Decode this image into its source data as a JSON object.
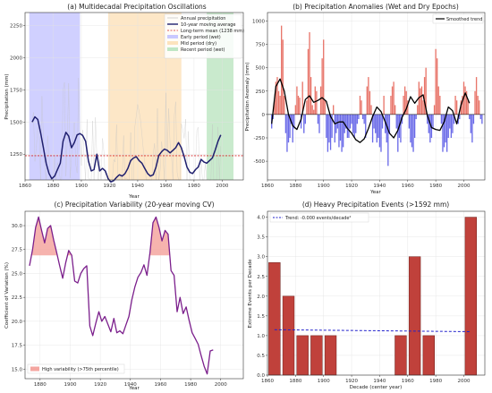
{
  "chart_data": [
    {
      "type": "line",
      "title": "(a) Multidecadal Precipitation Oscillations",
      "xlabel": "Year",
      "ylabel": "Precipitation (mm)",
      "xlim": [
        1860,
        2015
      ],
      "ylim": [
        1050,
        2350
      ],
      "xticks": [
        1860,
        1880,
        1900,
        1920,
        1940,
        1960,
        1980,
        2000
      ],
      "yticks": [
        1000,
        1250,
        1500,
        1750,
        2000,
        2250
      ],
      "legend_position": "top-right",
      "grid": true,
      "spans": [
        {
          "name": "Early period (wet)",
          "x0": 1863,
          "x1": 1899,
          "color": "#c8c8ff"
        },
        {
          "name": "Mid period (dry)",
          "x0": 1919,
          "x1": 1971,
          "color": "#fde3bd"
        },
        {
          "name": "Recent period (wet)",
          "x0": 1989,
          "x1": 2008,
          "color": "#bfe6c4"
        }
      ],
      "series": [
        {
          "name": "Annual precipitation",
          "color": "#c0c0c0"
        },
        {
          "name": "10-year moving average",
          "color": "#1f1f6e",
          "x": [
            1865,
            1867,
            1869,
            1871,
            1873,
            1875,
            1877,
            1879,
            1881,
            1883,
            1885,
            1887,
            1889,
            1891,
            1893,
            1895,
            1897,
            1899,
            1901,
            1903,
            1905,
            1907,
            1909,
            1911,
            1913,
            1915,
            1917,
            1919,
            1921,
            1923,
            1925,
            1927,
            1929,
            1931,
            1933,
            1935,
            1937,
            1939,
            1941,
            1943,
            1945,
            1947,
            1949,
            1951,
            1953,
            1955,
            1957,
            1959,
            1961,
            1963,
            1965,
            1967,
            1969,
            1971,
            1973,
            1975,
            1977,
            1979,
            1981,
            1983,
            1985,
            1987,
            1989,
            1991,
            1993,
            1995,
            1997,
            1999
          ],
          "y": [
            1500,
            1540,
            1520,
            1420,
            1300,
            1180,
            1100,
            1060,
            1080,
            1130,
            1180,
            1350,
            1420,
            1390,
            1300,
            1340,
            1400,
            1410,
            1395,
            1350,
            1200,
            1120,
            1130,
            1250,
            1120,
            1140,
            1120,
            1060,
            1035,
            1045,
            1070,
            1090,
            1080,
            1100,
            1140,
            1200,
            1220,
            1230,
            1200,
            1180,
            1140,
            1100,
            1080,
            1090,
            1150,
            1240,
            1270,
            1290,
            1280,
            1260,
            1280,
            1300,
            1340,
            1300,
            1230,
            1150,
            1110,
            1100,
            1130,
            1150,
            1210,
            1190,
            1180,
            1200,
            1220,
            1280,
            1350,
            1400
          ]
        },
        {
          "name": "Long-term mean (1238 mm)",
          "value": 1238,
          "color": "#d62728"
        }
      ],
      "annual_noise_seed": 7
    },
    {
      "type": "bar",
      "title": "(b) Precipitation Anomalies (Wet and Dry Epochs)",
      "xlabel": "Year",
      "ylabel": "Precipitation Anomaly (mm)",
      "xlim": [
        1860,
        2015
      ],
      "ylim": [
        -700,
        1090
      ],
      "xticks": [
        1860,
        1880,
        1900,
        1920,
        1940,
        1960,
        1980,
        2000
      ],
      "yticks": [
        -500,
        -250,
        0,
        250,
        500,
        750,
        1000
      ],
      "legend_position": "top-right",
      "grid": true,
      "positive_color": "#e8756a",
      "negative_color": "#6a6ae8",
      "years_from": 1863,
      "values": [
        -150,
        -50,
        150,
        350,
        400,
        250,
        200,
        950,
        800,
        200,
        -200,
        -400,
        -300,
        -250,
        -100,
        -300,
        -150,
        100,
        300,
        200,
        180,
        -150,
        350,
        -200,
        -100,
        150,
        700,
        880,
        400,
        100,
        50,
        300,
        250,
        -100,
        -200,
        300,
        600,
        800,
        150,
        -250,
        -400,
        -300,
        -380,
        -250,
        100,
        -300,
        -200,
        -150,
        -350,
        -280,
        -400,
        -350,
        -200,
        -150,
        -250,
        -250,
        -150,
        -100,
        -200,
        -250,
        -200,
        -100,
        -50,
        200,
        150,
        -50,
        -100,
        -250,
        300,
        400,
        250,
        100,
        -300,
        -150,
        -200,
        -300,
        -250,
        -350,
        -400,
        -150,
        200,
        -200,
        -300,
        -550,
        -200,
        200,
        300,
        350,
        100,
        -150,
        -400,
        -250,
        -300,
        -100,
        200,
        300,
        250,
        150,
        -150,
        -300,
        -350,
        -400,
        -250,
        -50,
        100,
        350,
        280,
        300,
        150,
        400,
        500,
        -100,
        -200,
        -300,
        -250,
        -150,
        100,
        700,
        600,
        300,
        200,
        -100,
        -400,
        -350,
        -300,
        -400,
        -250,
        -150,
        -250,
        -200,
        -100,
        200,
        150,
        -100,
        -50,
        150,
        200,
        350,
        300,
        250,
        150,
        -50,
        -200,
        -300,
        -100,
        250,
        400,
        200,
        150,
        -50,
        -100
      ],
      "series": [
        {
          "name": "Smoothed trend",
          "color": "#000000",
          "x": [
            1863,
            1866,
            1869,
            1872,
            1875,
            1878,
            1881,
            1884,
            1887,
            1890,
            1893,
            1896,
            1899,
            1902,
            1905,
            1908,
            1911,
            1914,
            1917,
            1920,
            1923,
            1926,
            1929,
            1932,
            1935,
            1938,
            1941,
            1944,
            1947,
            1950,
            1953,
            1956,
            1959,
            1962,
            1965,
            1968,
            1971,
            1974,
            1977,
            1980,
            1983,
            1986,
            1989,
            1992,
            1995,
            1998,
            2001,
            2004
          ],
          "y": [
            -100,
            300,
            380,
            250,
            0,
            -120,
            -160,
            -50,
            160,
            200,
            130,
            150,
            180,
            140,
            -20,
            -100,
            -80,
            -80,
            -150,
            -200,
            -270,
            -300,
            -260,
            -150,
            -20,
            80,
            30,
            -80,
            -200,
            -250,
            -170,
            -30,
            60,
            190,
            120,
            180,
            210,
            -10,
            -140,
            -160,
            -170,
            -80,
            80,
            40,
            -100,
            100,
            230,
            120
          ]
        }
      ]
    },
    {
      "type": "line",
      "title": "(c) Precipitation Variability (20-year moving CV)",
      "xlabel": "Year",
      "ylabel": "Coefficient of Variation (%)",
      "xlim": [
        1870,
        2015
      ],
      "ylim": [
        14,
        31.5
      ],
      "xticks": [
        1880,
        1900,
        1920,
        1940,
        1960,
        1980,
        2000
      ],
      "yticks": [
        15.0,
        17.5,
        20.0,
        22.5,
        25.0,
        27.5,
        30.0
      ],
      "legend_position": "bottom-left",
      "grid": true,
      "threshold": 26.9,
      "threshold_color": "#f4a6a0",
      "series": [
        {
          "name": "CV",
          "color": "#7b1f8c",
          "x": [
            1873,
            1875,
            1877,
            1879,
            1881,
            1883,
            1885,
            1887,
            1889,
            1891,
            1893,
            1895,
            1897,
            1899,
            1901,
            1903,
            1905,
            1907,
            1909,
            1911,
            1913,
            1915,
            1917,
            1919,
            1921,
            1923,
            1925,
            1927,
            1929,
            1931,
            1933,
            1935,
            1937,
            1939,
            1941,
            1943,
            1945,
            1947,
            1949,
            1951,
            1953,
            1955,
            1957,
            1959,
            1961,
            1963,
            1965,
            1967,
            1969,
            1971,
            1973,
            1975,
            1977,
            1979,
            1981,
            1983,
            1985,
            1987,
            1989,
            1991,
            1993,
            1995
          ],
          "y": [
            25.8,
            27.5,
            29.8,
            30.9,
            29.5,
            28.2,
            29.7,
            30.0,
            28.5,
            27.2,
            25.8,
            24.5,
            26.1,
            27.4,
            26.9,
            24.2,
            24.0,
            25.0,
            25.5,
            25.8,
            19.5,
            18.5,
            19.8,
            21.0,
            20.0,
            20.5,
            19.7,
            18.9,
            20.3,
            18.8,
            19.0,
            18.7,
            19.6,
            20.5,
            22.3,
            23.6,
            24.6,
            25.1,
            25.9,
            24.8,
            27.2,
            30.3,
            30.9,
            29.8,
            28.4,
            29.5,
            29.1,
            25.3,
            24.8,
            21.0,
            22.5,
            20.8,
            21.5,
            20.1,
            18.8,
            18.2,
            17.6,
            16.4,
            15.3,
            14.5,
            16.9,
            17.0
          ]
        }
      ],
      "legend": [
        {
          "name": "High variability (>75th percentile)",
          "color": "#f4a6a0"
        }
      ]
    },
    {
      "type": "bar",
      "title": "(d) Heavy Precipitation Events (>1592 mm)",
      "xlabel": "Decade (center year)",
      "ylabel": "Extreme Events per Decade",
      "xlim": [
        1860,
        2015
      ],
      "ylim": [
        0,
        4.15
      ],
      "xticks": [
        1860,
        1880,
        1900,
        1920,
        1940,
        1960,
        1980,
        2000
      ],
      "yticks": [
        0.0,
        0.5,
        1.0,
        1.5,
        2.0,
        2.5,
        3.0,
        3.5,
        4.0
      ],
      "legend_position": "top-left",
      "grid": true,
      "categories": [
        1865,
        1875,
        1885,
        1895,
        1905,
        1955,
        1965,
        1975,
        2005
      ],
      "values": [
        2.85,
        2.0,
        1.0,
        1.0,
        1.0,
        1.0,
        3.0,
        1.0,
        4.0
      ],
      "bar_color": "#c0413b",
      "series": [
        {
          "name": "Trend: -0.000 events/decade²",
          "color": "#2222cc",
          "x": [
            1865,
            2005
          ],
          "y": [
            1.15,
            1.1
          ]
        }
      ]
    }
  ]
}
